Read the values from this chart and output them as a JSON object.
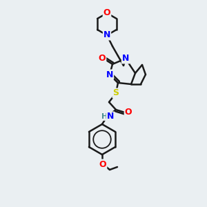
{
  "background_color": "#eaeff2",
  "bond_color": "#1a1a1a",
  "atom_colors": {
    "N": "#0000ff",
    "O": "#ff0000",
    "S": "#cccc00",
    "H": "#4a9090",
    "C": "#1a1a1a"
  },
  "figsize": [
    3.0,
    3.0
  ],
  "dpi": 100
}
